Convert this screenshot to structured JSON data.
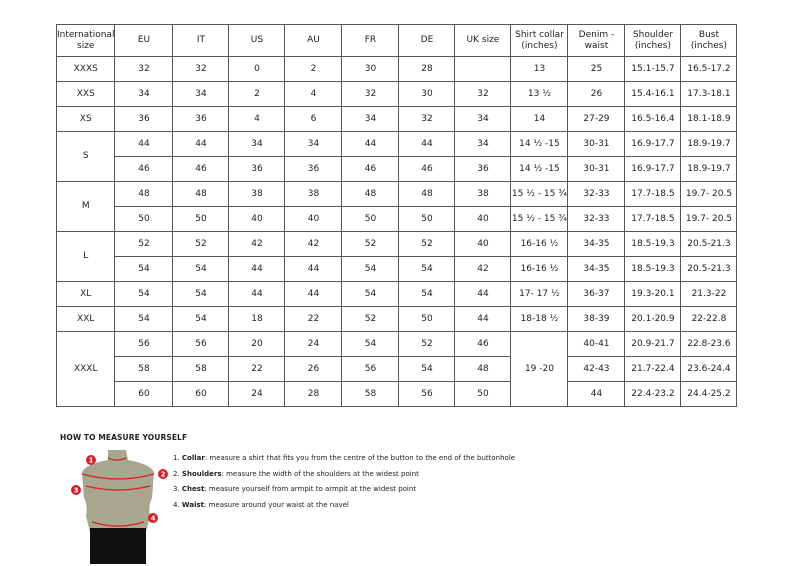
{
  "headers": [
    "International size",
    "EU",
    "IT",
    "US",
    "AU",
    "FR",
    "DE",
    "UK size",
    "Shirt collar (inches)",
    "Denim - waist",
    "Shoulder (inches)",
    "Bust (inches)"
  ],
  "groups": [
    {
      "size": "XXXS",
      "rows": [
        [
          "32",
          "32",
          "0",
          "2",
          "30",
          "28",
          "",
          "13",
          "25",
          "15.1-15.7",
          "16.5-17.2"
        ]
      ]
    },
    {
      "size": "XXS",
      "rows": [
        [
          "34",
          "34",
          "2",
          "4",
          "32",
          "30",
          "32",
          "13 ½",
          "26",
          "15.4-16.1",
          "17.3-18.1"
        ]
      ]
    },
    {
      "size": "XS",
      "rows": [
        [
          "36",
          "36",
          "4",
          "6",
          "34",
          "32",
          "34",
          "14",
          "27-29",
          "16.5-16.4",
          "18.1-18.9"
        ]
      ]
    },
    {
      "size": "S",
      "rows": [
        [
          "44",
          "44",
          "34",
          "34",
          "44",
          "44",
          "34",
          "14 ½ -15",
          "30-31",
          "16.9-17.7",
          "18.9-19.7"
        ],
        [
          "46",
          "46",
          "36",
          "36",
          "46",
          "46",
          "36",
          "14 ½ -15",
          "30-31",
          "16.9-17.7",
          "18.9-19.7"
        ]
      ]
    },
    {
      "size": "M",
      "rows": [
        [
          "48",
          "48",
          "38",
          "38",
          "48",
          "48",
          "38",
          "15 ½ - 15 ¾",
          "32-33",
          "17.7-18.5",
          "19.7- 20.5"
        ],
        [
          "50",
          "50",
          "40",
          "40",
          "50",
          "50",
          "40",
          "15 ½ - 15 ¾",
          "32-33",
          "17.7-18.5",
          "19.7- 20.5"
        ]
      ]
    },
    {
      "size": "L",
      "rows": [
        [
          "52",
          "52",
          "42",
          "42",
          "52",
          "52",
          "40",
          "16-16 ½",
          "34-35",
          "18.5-19.3",
          "20.5-21.3"
        ],
        [
          "54",
          "54",
          "44",
          "44",
          "54",
          "54",
          "42",
          "16-16 ½",
          "34-35",
          "18.5-19.3",
          "20.5-21.3"
        ]
      ]
    },
    {
      "size": "XL",
      "rows": [
        [
          "54",
          "54",
          "44",
          "44",
          "54",
          "54",
          "44",
          "17- 17 ½",
          "36-37",
          "19.3-20.1",
          "21.3-22"
        ]
      ]
    },
    {
      "size": "XXL",
      "rows": [
        [
          "54",
          "54",
          "18",
          "22",
          "52",
          "50",
          "44",
          "18-18 ½",
          "38-39",
          "20.1-20.9",
          "22-22.8"
        ]
      ]
    },
    {
      "size": "XXXL",
      "collar": "19 -20",
      "rows": [
        [
          "56",
          "56",
          "20",
          "24",
          "54",
          "52",
          "46",
          "40-41",
          "20.9-21.7",
          "22.8-23.6"
        ],
        [
          "58",
          "58",
          "22",
          "26",
          "56",
          "54",
          "48",
          "42-43",
          "21.7-22.4",
          "23.6-24.4"
        ],
        [
          "60",
          "60",
          "24",
          "28",
          "58",
          "56",
          "50",
          "44",
          "22.4-23.2",
          "24.4-25.2"
        ]
      ]
    }
  ],
  "howto": {
    "title": "HOW TO MEASURE YOURSELF",
    "steps": [
      {
        "num": "1.",
        "term": "Collar",
        "text": ": measure a shirt that fits you from the centre of the button to the end of the buttonhole"
      },
      {
        "num": "2.",
        "term": "Shoulders",
        "text": ": measure the width of the shoulders at the widest point"
      },
      {
        "num": "3.",
        "term": "Chest",
        "text": ": measure yourself from armpit to armpit at the widest point"
      },
      {
        "num": "4.",
        "term": "Waist",
        "text": ": measure around your waist at the navel"
      }
    ],
    "markers": [
      "1",
      "2",
      "3",
      "4"
    ]
  },
  "colors": {
    "marker": "#d71f26",
    "body": "#a9a68f",
    "shorts": "#111111"
  }
}
